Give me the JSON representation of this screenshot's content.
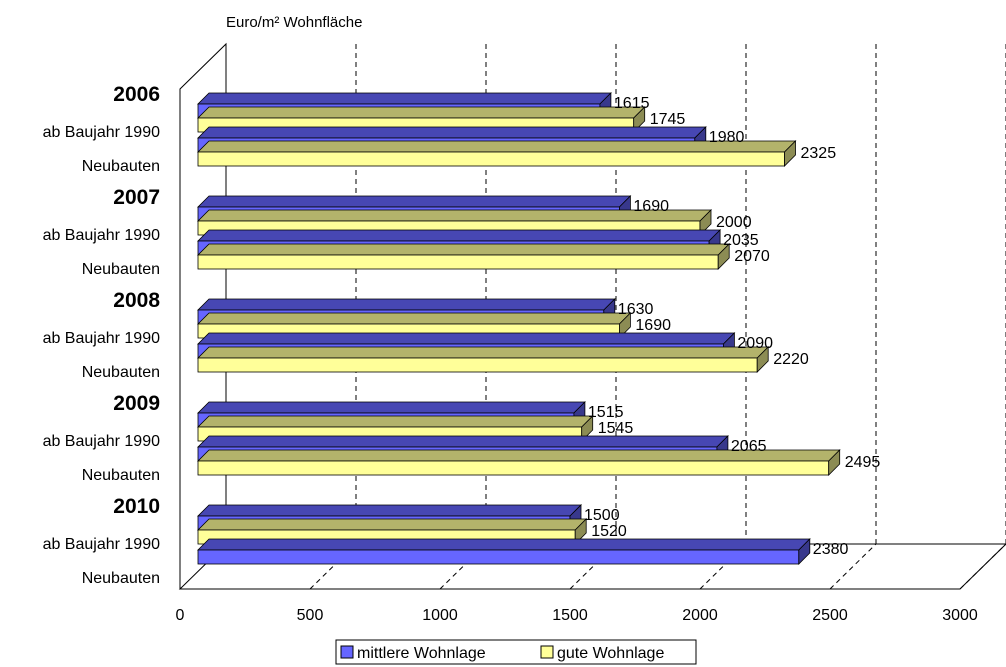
{
  "chart_data": {
    "type": "bar",
    "orientation": "horizontal",
    "three_d": true,
    "unit_label": "Euro/m² Wohnfläche",
    "xlim": [
      0,
      3000
    ],
    "x_ticks": [
      "0",
      "500",
      "1000",
      "1500",
      "2000",
      "2500",
      "3000"
    ],
    "grid": "vertical dashed",
    "legend_position": "bottom",
    "groups": [
      {
        "year": "2006",
        "rows": [
          "ab Baujahr 1990",
          "Neubauten"
        ]
      },
      {
        "year": "2007",
        "rows": [
          "ab Baujahr 1990",
          "Neubauten"
        ]
      },
      {
        "year": "2008",
        "rows": [
          "ab Baujahr 1990",
          "Neubauten"
        ]
      },
      {
        "year": "2009",
        "rows": [
          "ab Baujahr 1990",
          "Neubauten"
        ]
      },
      {
        "year": "2010",
        "rows": [
          "ab Baujahr 1990",
          "Neubauten"
        ]
      }
    ],
    "series": [
      {
        "name": "mittlere Wohnlage",
        "color": "#6666ff",
        "values": [
          1615,
          1980,
          1690,
          2035,
          1630,
          2090,
          1515,
          2065,
          1500,
          2380
        ],
        "labels": [
          "1615",
          "1980",
          "1690",
          "2035",
          "1630",
          "2090",
          "1515",
          "2065",
          "1500",
          "2380"
        ]
      },
      {
        "name": "gute Wohnlage",
        "color": "#ffff99",
        "values": [
          1745,
          2325,
          2000,
          2070,
          1690,
          2220,
          1545,
          2495,
          1520,
          null
        ],
        "labels": [
          "1745",
          "2325",
          "2000",
          "2070",
          "1690",
          "2220",
          "1545",
          "2495",
          "1520",
          ""
        ]
      }
    ]
  }
}
